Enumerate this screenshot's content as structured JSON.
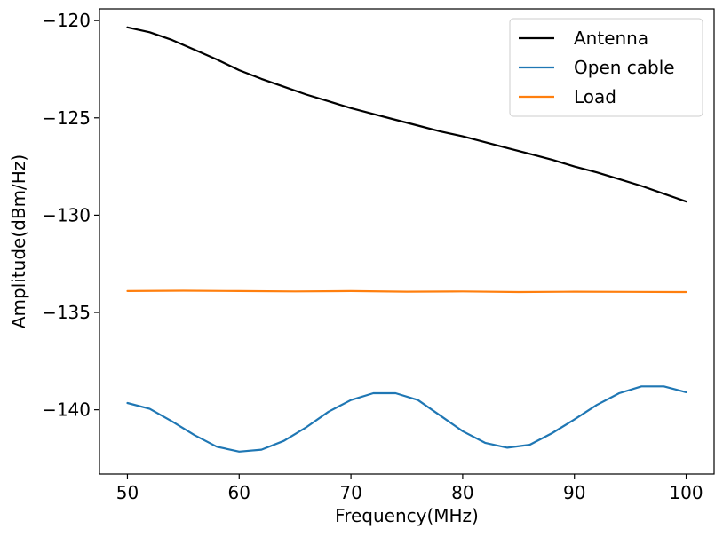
{
  "chart_data": {
    "type": "line",
    "title": "",
    "xlabel": "Frequency(MHz)",
    "ylabel": "Amplitude(dBm/Hz)",
    "xlim": [
      47.5,
      102.5
    ],
    "ylim": [
      -143.3,
      -119.4
    ],
    "xticks": [
      50,
      60,
      70,
      80,
      90,
      100
    ],
    "xtick_labels": [
      "50",
      "60",
      "70",
      "80",
      "90",
      "100"
    ],
    "yticks": [
      -120,
      -125,
      -130,
      -135,
      -140
    ],
    "ytick_labels": [
      "−120",
      "−125",
      "−130",
      "−135",
      "−140"
    ],
    "grid": false,
    "legend_position": "top-right",
    "series": [
      {
        "name": "Antenna",
        "color": "#000000",
        "x": [
          50,
          52,
          54,
          56,
          58,
          60,
          62,
          64,
          66,
          68,
          70,
          72,
          74,
          76,
          78,
          80,
          82,
          84,
          86,
          88,
          90,
          92,
          94,
          96,
          98,
          100
        ],
        "y": [
          -120.35,
          -120.6,
          -121.0,
          -121.5,
          -122.0,
          -122.55,
          -123.0,
          -123.4,
          -123.8,
          -124.15,
          -124.5,
          -124.8,
          -125.1,
          -125.4,
          -125.7,
          -125.95,
          -126.25,
          -126.55,
          -126.85,
          -127.15,
          -127.5,
          -127.8,
          -128.15,
          -128.5,
          -128.9,
          -129.3
        ]
      },
      {
        "name": "Open cable",
        "color": "#1f77b4",
        "x": [
          50,
          52,
          54,
          56,
          58,
          60,
          62,
          64,
          66,
          68,
          70,
          72,
          74,
          76,
          78,
          80,
          82,
          84,
          86,
          88,
          90,
          92,
          94,
          96,
          98,
          100
        ],
        "y": [
          -139.65,
          -139.95,
          -140.6,
          -141.3,
          -141.9,
          -142.15,
          -142.05,
          -141.6,
          -140.9,
          -140.1,
          -139.5,
          -139.15,
          -139.15,
          -139.5,
          -140.3,
          -141.1,
          -141.7,
          -141.95,
          -141.8,
          -141.2,
          -140.5,
          -139.75,
          -139.15,
          -138.8,
          -138.8,
          -139.1
        ]
      },
      {
        "name": "Load",
        "color": "#ff7f0e",
        "x": [
          50,
          55,
          60,
          65,
          70,
          75,
          80,
          85,
          90,
          95,
          100
        ],
        "y": [
          -133.9,
          -133.88,
          -133.9,
          -133.92,
          -133.9,
          -133.93,
          -133.92,
          -133.95,
          -133.93,
          -133.94,
          -133.95
        ]
      }
    ]
  }
}
